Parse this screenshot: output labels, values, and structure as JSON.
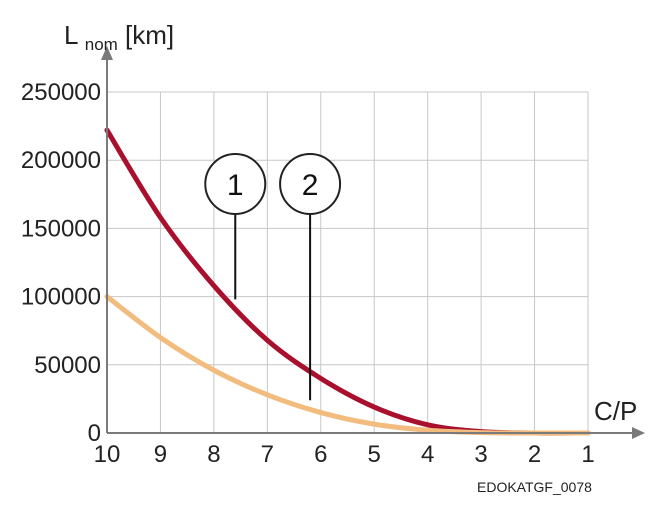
{
  "chart_data": {
    "type": "line",
    "ylabel": {
      "main": "L",
      "subscript": "nom",
      "unit": "[km]"
    },
    "xlabel": "C/P",
    "x_reversed": true,
    "xlim": [
      10,
      1
    ],
    "ylim": [
      0,
      250000
    ],
    "categories": [
      10,
      9,
      8,
      7,
      6,
      5,
      4,
      3,
      2,
      1
    ],
    "x_tick_labels": [
      "10",
      "9",
      "8",
      "7",
      "6",
      "5",
      "4",
      "3",
      "2",
      "1"
    ],
    "y_ticks": [
      0,
      50000,
      100000,
      150000,
      200000,
      250000
    ],
    "y_tick_labels": [
      "0",
      "50000",
      "100000",
      "150000",
      "200000",
      "250000"
    ],
    "grid": true,
    "series": [
      {
        "name": "1",
        "color": "#a8102e",
        "values": [
          222000,
          158000,
          108000,
          68000,
          40000,
          19000,
          6000,
          1000,
          0,
          0
        ]
      },
      {
        "name": "2",
        "color": "#f2bc7f",
        "values": [
          100000,
          70000,
          46000,
          28000,
          15000,
          6500,
          2000,
          300,
          0,
          0
        ]
      }
    ],
    "callouts": [
      {
        "label": "1",
        "series": "1",
        "x": 7.6,
        "y": 98000
      },
      {
        "label": "2",
        "series": "2",
        "x": 6.2,
        "y": 24000
      }
    ],
    "footer_code": "EDOKATGF_0078"
  },
  "colors": {
    "grid": "#c7c7c7",
    "axis": "#7a7a7a",
    "text": "#222222"
  }
}
